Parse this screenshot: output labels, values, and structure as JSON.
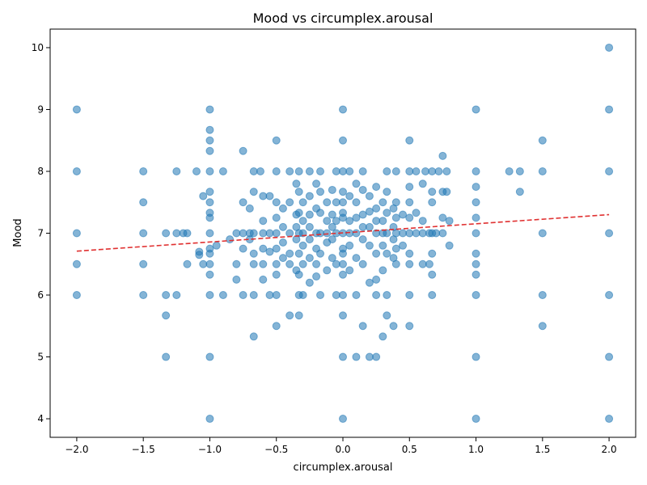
{
  "chart_data": {
    "type": "scatter",
    "title": "Mood vs circumplex.arousal",
    "xlabel": "circumplex.arousal",
    "ylabel": "Mood",
    "xlim": [
      -2.2,
      2.2
    ],
    "ylim": [
      3.7,
      10.3
    ],
    "xticks": [
      -2.0,
      -1.5,
      -1.0,
      -0.5,
      0.0,
      0.5,
      1.0,
      1.5,
      2.0
    ],
    "xtick_labels": [
      "−2.0",
      "−1.5",
      "−1.0",
      "−0.5",
      "0.0",
      "0.5",
      "1.0",
      "1.5",
      "2.0"
    ],
    "yticks": [
      4,
      5,
      6,
      7,
      8,
      9,
      10
    ],
    "ytick_labels": [
      "4",
      "5",
      "6",
      "7",
      "8",
      "9",
      "10"
    ],
    "grid": false,
    "point_color": "#1f77b4",
    "point_alpha": 0.55,
    "trend_color": "#e03131",
    "trend_line": {
      "x": [
        -2.0,
        2.0
      ],
      "y": [
        6.71,
        7.3
      ]
    },
    "points": [
      [
        -2,
        9
      ],
      [
        -2,
        8
      ],
      [
        -2,
        7
      ],
      [
        -2,
        6.5
      ],
      [
        -2,
        6
      ],
      [
        -1.5,
        8
      ],
      [
        -1.5,
        7.5
      ],
      [
        -1.5,
        7
      ],
      [
        -1.5,
        6.5
      ],
      [
        -1.5,
        6
      ],
      [
        -1.33,
        7
      ],
      [
        -1.33,
        6
      ],
      [
        -1.33,
        5.67
      ],
      [
        -1.33,
        5
      ],
      [
        -1.25,
        8
      ],
      [
        -1.25,
        7
      ],
      [
        -1.25,
        6
      ],
      [
        -1.2,
        7
      ],
      [
        -1.17,
        7
      ],
      [
        -1.17,
        6.5
      ],
      [
        -1.1,
        8
      ],
      [
        -1.05,
        7.6
      ],
      [
        -1.05,
        6.5
      ],
      [
        -1.08,
        6.7
      ],
      [
        -1.08,
        6.65
      ],
      [
        -1,
        9
      ],
      [
        -1,
        8.67
      ],
      [
        -1,
        8.5
      ],
      [
        -1,
        8.33
      ],
      [
        -1,
        8
      ],
      [
        -1,
        7.67
      ],
      [
        -1,
        7.5
      ],
      [
        -1,
        7.33
      ],
      [
        -1,
        7.25
      ],
      [
        -1,
        7
      ],
      [
        -1,
        6.75
      ],
      [
        -1,
        6.67
      ],
      [
        -1,
        6.5
      ],
      [
        -1,
        6.33
      ],
      [
        -1,
        6
      ],
      [
        -1,
        5
      ],
      [
        -1,
        4
      ],
      [
        -0.95,
        6.8
      ],
      [
        -0.9,
        8
      ],
      [
        -0.9,
        6
      ],
      [
        -0.85,
        6.9
      ],
      [
        -0.8,
        7
      ],
      [
        -0.8,
        6.5
      ],
      [
        -0.8,
        6.25
      ],
      [
        -0.75,
        8.33
      ],
      [
        -0.75,
        7.5
      ],
      [
        -0.75,
        7
      ],
      [
        -0.75,
        6.75
      ],
      [
        -0.75,
        6
      ],
      [
        -0.7,
        7.4
      ],
      [
        -0.7,
        7
      ],
      [
        -0.7,
        6.9
      ],
      [
        -0.67,
        8
      ],
      [
        -0.67,
        7.67
      ],
      [
        -0.67,
        7
      ],
      [
        -0.67,
        6.67
      ],
      [
        -0.67,
        6.5
      ],
      [
        -0.67,
        6
      ],
      [
        -0.67,
        5.33
      ],
      [
        -0.62,
        8
      ],
      [
        -0.6,
        7.6
      ],
      [
        -0.6,
        7.2
      ],
      [
        -0.6,
        7
      ],
      [
        -0.6,
        6.75
      ],
      [
        -0.6,
        6.5
      ],
      [
        -0.6,
        6.25
      ],
      [
        -0.55,
        7.6
      ],
      [
        -0.55,
        7
      ],
      [
        -0.55,
        6.7
      ],
      [
        -0.55,
        6
      ],
      [
        -0.5,
        8.5
      ],
      [
        -0.5,
        8
      ],
      [
        -0.5,
        7.5
      ],
      [
        -0.5,
        7.25
      ],
      [
        -0.5,
        7
      ],
      [
        -0.5,
        6.75
      ],
      [
        -0.5,
        6.5
      ],
      [
        -0.5,
        6.33
      ],
      [
        -0.5,
        6
      ],
      [
        -0.5,
        5.5
      ],
      [
        -0.45,
        7.4
      ],
      [
        -0.45,
        7.1
      ],
      [
        -0.45,
        6.85
      ],
      [
        -0.45,
        6.6
      ],
      [
        -0.4,
        8
      ],
      [
        -0.4,
        7.5
      ],
      [
        -0.4,
        7
      ],
      [
        -0.4,
        6.67
      ],
      [
        -0.4,
        6.5
      ],
      [
        -0.4,
        5.67
      ],
      [
        -0.35,
        7.8
      ],
      [
        -0.35,
        7.3
      ],
      [
        -0.35,
        7.1
      ],
      [
        -0.35,
        6.9
      ],
      [
        -0.35,
        6.4
      ],
      [
        -0.33,
        8
      ],
      [
        -0.33,
        7.67
      ],
      [
        -0.33,
        7.33
      ],
      [
        -0.33,
        7
      ],
      [
        -0.33,
        6.67
      ],
      [
        -0.33,
        6.33
      ],
      [
        -0.33,
        6
      ],
      [
        -0.33,
        5.67
      ],
      [
        -0.3,
        7.5
      ],
      [
        -0.3,
        7.2
      ],
      [
        -0.3,
        7
      ],
      [
        -0.3,
        6.8
      ],
      [
        -0.3,
        6.5
      ],
      [
        -0.3,
        6
      ],
      [
        -0.25,
        8
      ],
      [
        -0.25,
        7.6
      ],
      [
        -0.25,
        7.3
      ],
      [
        -0.25,
        7.1
      ],
      [
        -0.25,
        6.9
      ],
      [
        -0.25,
        6.6
      ],
      [
        -0.25,
        6.2
      ],
      [
        -0.2,
        7.8
      ],
      [
        -0.2,
        7.4
      ],
      [
        -0.2,
        7
      ],
      [
        -0.2,
        6.75
      ],
      [
        -0.2,
        6.5
      ],
      [
        -0.2,
        6.3
      ],
      [
        -0.17,
        8
      ],
      [
        -0.17,
        7.67
      ],
      [
        -0.17,
        7.33
      ],
      [
        -0.17,
        7
      ],
      [
        -0.17,
        6.67
      ],
      [
        -0.17,
        6
      ],
      [
        -0.12,
        7.5
      ],
      [
        -0.12,
        7.2
      ],
      [
        -0.12,
        7
      ],
      [
        -0.12,
        6.85
      ],
      [
        -0.12,
        6.4
      ],
      [
        -0.08,
        7.7
      ],
      [
        -0.08,
        7.3
      ],
      [
        -0.08,
        7.1
      ],
      [
        -0.08,
        6.9
      ],
      [
        -0.08,
        6.6
      ],
      [
        -0.05,
        8
      ],
      [
        -0.05,
        7.5
      ],
      [
        -0.05,
        7.2
      ],
      [
        -0.05,
        7
      ],
      [
        -0.05,
        6.5
      ],
      [
        -0.05,
        6
      ],
      [
        0,
        9
      ],
      [
        0,
        8.5
      ],
      [
        0,
        8
      ],
      [
        0,
        7.67
      ],
      [
        0,
        7.5
      ],
      [
        0,
        7.33
      ],
      [
        0,
        7.25
      ],
      [
        0,
        7
      ],
      [
        0,
        6.75
      ],
      [
        0,
        6.67
      ],
      [
        0,
        6.5
      ],
      [
        0,
        6.33
      ],
      [
        0,
        6
      ],
      [
        0,
        5.67
      ],
      [
        0,
        5
      ],
      [
        0,
        4
      ],
      [
        0.05,
        8
      ],
      [
        0.05,
        7.6
      ],
      [
        0.05,
        7.2
      ],
      [
        0.05,
        7
      ],
      [
        0.05,
        6.8
      ],
      [
        0.05,
        6.4
      ],
      [
        0.1,
        7.8
      ],
      [
        0.1,
        7.5
      ],
      [
        0.1,
        7.25
      ],
      [
        0.1,
        7
      ],
      [
        0.1,
        6.6
      ],
      [
        0.1,
        6
      ],
      [
        0.1,
        5
      ],
      [
        0.15,
        8
      ],
      [
        0.15,
        7.7
      ],
      [
        0.15,
        7.3
      ],
      [
        0.15,
        7.1
      ],
      [
        0.15,
        6.9
      ],
      [
        0.15,
        6.5
      ],
      [
        0.15,
        5.5
      ],
      [
        0.2,
        7.6
      ],
      [
        0.2,
        7.35
      ],
      [
        0.2,
        7.1
      ],
      [
        0.2,
        6.8
      ],
      [
        0.2,
        6.2
      ],
      [
        0.2,
        5
      ],
      [
        0.25,
        7.75
      ],
      [
        0.25,
        7.4
      ],
      [
        0.25,
        7.2
      ],
      [
        0.25,
        7
      ],
      [
        0.25,
        6.67
      ],
      [
        0.25,
        6.25
      ],
      [
        0.25,
        6
      ],
      [
        0.25,
        5
      ],
      [
        0.3,
        7.5
      ],
      [
        0.3,
        7.2
      ],
      [
        0.3,
        7
      ],
      [
        0.3,
        6.8
      ],
      [
        0.3,
        6.4
      ],
      [
        0.3,
        5.33
      ],
      [
        0.33,
        8
      ],
      [
        0.33,
        7.67
      ],
      [
        0.33,
        7.33
      ],
      [
        0.33,
        7
      ],
      [
        0.33,
        6.67
      ],
      [
        0.33,
        6
      ],
      [
        0.33,
        5.67
      ],
      [
        0.38,
        7.4
      ],
      [
        0.38,
        7.1
      ],
      [
        0.38,
        6.9
      ],
      [
        0.38,
        6.6
      ],
      [
        0.38,
        5.5
      ],
      [
        0.4,
        8
      ],
      [
        0.4,
        7.5
      ],
      [
        0.4,
        7.25
      ],
      [
        0.4,
        7
      ],
      [
        0.4,
        6.75
      ],
      [
        0.4,
        6.5
      ],
      [
        0.45,
        7.3
      ],
      [
        0.45,
        7
      ],
      [
        0.45,
        6.8
      ],
      [
        0.5,
        8.5
      ],
      [
        0.5,
        8
      ],
      [
        0.5,
        7.75
      ],
      [
        0.5,
        7.5
      ],
      [
        0.5,
        7.25
      ],
      [
        0.5,
        7
      ],
      [
        0.5,
        6.67
      ],
      [
        0.5,
        6.5
      ],
      [
        0.5,
        6
      ],
      [
        0.5,
        5.5
      ],
      [
        0.55,
        8
      ],
      [
        0.55,
        7.33
      ],
      [
        0.55,
        7
      ],
      [
        0.6,
        7.8
      ],
      [
        0.6,
        7.2
      ],
      [
        0.6,
        7
      ],
      [
        0.6,
        6.5
      ],
      [
        0.62,
        8
      ],
      [
        0.65,
        7
      ],
      [
        0.65,
        6.5
      ],
      [
        0.67,
        8
      ],
      [
        0.67,
        7.67
      ],
      [
        0.67,
        7.5
      ],
      [
        0.67,
        7
      ],
      [
        0.67,
        6.67
      ],
      [
        0.67,
        6.33
      ],
      [
        0.67,
        6
      ],
      [
        0.7,
        7
      ],
      [
        0.72,
        8
      ],
      [
        0.75,
        8.25
      ],
      [
        0.75,
        7.67
      ],
      [
        0.75,
        7.25
      ],
      [
        0.75,
        7
      ],
      [
        0.78,
        8
      ],
      [
        0.78,
        7.67
      ],
      [
        0.8,
        7.2
      ],
      [
        0.8,
        6.8
      ],
      [
        1,
        9
      ],
      [
        1,
        8
      ],
      [
        1,
        7.75
      ],
      [
        1,
        7.5
      ],
      [
        1,
        7.25
      ],
      [
        1,
        7
      ],
      [
        1,
        6.67
      ],
      [
        1,
        6.5
      ],
      [
        1,
        6.33
      ],
      [
        1,
        6
      ],
      [
        1,
        5
      ],
      [
        1,
        4
      ],
      [
        1.25,
        8
      ],
      [
        1.33,
        8
      ],
      [
        1.33,
        7.67
      ],
      [
        1.5,
        8.5
      ],
      [
        1.5,
        8
      ],
      [
        1.5,
        7
      ],
      [
        1.5,
        6
      ],
      [
        1.5,
        5.5
      ],
      [
        2,
        10
      ],
      [
        2,
        9
      ],
      [
        2,
        8
      ],
      [
        2,
        7
      ],
      [
        2,
        6
      ],
      [
        2,
        5
      ],
      [
        2,
        4
      ]
    ]
  }
}
